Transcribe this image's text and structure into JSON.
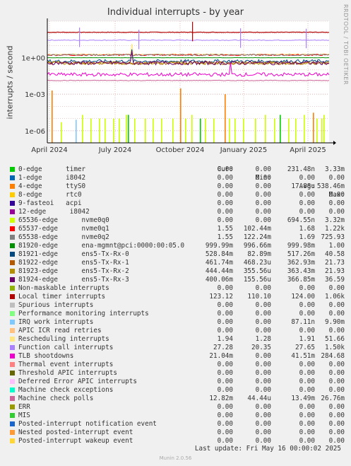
{
  "title": "Individual interrupts - by year",
  "ylabel": "interrupts / second",
  "watermark": "RRDTOOL / TOBI OETIKER",
  "last_update": "Last update: Fri May 16 00:00:02 2025",
  "version": "Munin 2.0.56",
  "chart_data": {
    "type": "line",
    "title": "Individual interrupts - by year",
    "ylabel": "interrupts / second",
    "yscale": "log",
    "ylim": [
      1e-07,
      1000
    ],
    "yticks": [
      {
        "value": 1,
        "label": "1e+00"
      },
      {
        "value": 0.001,
        "label": "1e-03"
      },
      {
        "value": 1e-06,
        "label": "1e-06"
      }
    ],
    "xticks": [
      "April 2024",
      "July 2024",
      "October 2024",
      "January 2025",
      "April 2025"
    ],
    "grid": true,
    "columns": [
      "Cur:",
      "Min:",
      "Avg:",
      "Max:"
    ],
    "series": [
      {
        "name": "0-edge      timer",
        "color": "#00cc00",
        "cur": "0.00",
        "min": "0.00",
        "avg": "231.48n",
        "max": "3.33m"
      },
      {
        "name": "1-edge      i8042",
        "color": "#0066b3",
        "cur": "0.00",
        "min": "0.00",
        "avg": "0.00",
        "max": "0.00"
      },
      {
        "name": "4-edge      ttyS0",
        "color": "#ff8000",
        "cur": "0.00",
        "min": "0.00",
        "avg": "17.88u",
        "max": "538.46m"
      },
      {
        "name": "8-edge      rtc0",
        "color": "#ffcc00",
        "cur": "0.00",
        "min": "0.00",
        "avg": "0.00",
        "max": "0.00"
      },
      {
        "name": "9-fasteoi   acpi",
        "color": "#330099",
        "cur": "0.00",
        "min": "0.00",
        "avg": "0.00",
        "max": "0.00"
      },
      {
        "name": "12-edge      i8042",
        "color": "#990099",
        "cur": "0.00",
        "min": "0.00",
        "avg": "0.00",
        "max": "0.00"
      },
      {
        "name": "65536-edge      nvme0q0",
        "color": "#ccff00",
        "cur": "0.00",
        "min": "0.00",
        "avg": "694.55n",
        "max": "3.32m"
      },
      {
        "name": "65537-edge      nvme0q1",
        "color": "#ff0000",
        "cur": "1.55",
        "min": "102.44m",
        "avg": "1.68",
        "max": "1.22k"
      },
      {
        "name": "65538-edge      nvme0q2",
        "color": "#808080",
        "cur": "1.55",
        "min": "122.24m",
        "avg": "1.69",
        "max": "725.93"
      },
      {
        "name": "81920-edge      ena-mgmnt@pci:0000:00:05.0",
        "color": "#008f00",
        "cur": "999.99m",
        "min": "996.66m",
        "avg": "999.98m",
        "max": "1.00"
      },
      {
        "name": "81921-edge      ens5-Tx-Rx-0",
        "color": "#00487d",
        "cur": "528.84m",
        "min": "82.89m",
        "avg": "517.26m",
        "max": "40.58"
      },
      {
        "name": "81922-edge      ens5-Tx-Rx-1",
        "color": "#b35a00",
        "cur": "461.74m",
        "min": "468.23u",
        "avg": "362.93m",
        "max": "21.73"
      },
      {
        "name": "81923-edge      ens5-Tx-Rx-2",
        "color": "#b38f00",
        "cur": "444.44m",
        "min": "355.56u",
        "avg": "363.43m",
        "max": "21.93"
      },
      {
        "name": "81924-edge      ens5-Tx-Rx-3",
        "color": "#6b006b",
        "cur": "400.06m",
        "min": "155.56u",
        "avg": "366.85m",
        "max": "36.59"
      },
      {
        "name": "Non-maskable interrupts",
        "color": "#8fb300",
        "cur": "0.00",
        "min": "0.00",
        "avg": "0.00",
        "max": "0.00"
      },
      {
        "name": "Local timer interrupts",
        "color": "#b30000",
        "cur": "123.12",
        "min": "110.10",
        "avg": "124.00",
        "max": "1.06k"
      },
      {
        "name": "Spurious interrupts",
        "color": "#bebebe",
        "cur": "0.00",
        "min": "0.00",
        "avg": "0.00",
        "max": "0.00"
      },
      {
        "name": "Performance monitoring interrupts",
        "color": "#80ff80",
        "cur": "0.00",
        "min": "0.00",
        "avg": "0.00",
        "max": "0.00"
      },
      {
        "name": "IRQ work interrupts",
        "color": "#80c9ff",
        "cur": "0.00",
        "min": "0.00",
        "avg": "87.11n",
        "max": "9.90m"
      },
      {
        "name": "APIC ICR read retries",
        "color": "#ffc080",
        "cur": "0.00",
        "min": "0.00",
        "avg": "0.00",
        "max": "0.00"
      },
      {
        "name": "Rescheduling interrupts",
        "color": "#ffe680",
        "cur": "1.94",
        "min": "1.28",
        "avg": "1.91",
        "max": "51.66"
      },
      {
        "name": "Function call interrupts",
        "color": "#aa80ff",
        "cur": "27.28",
        "min": "20.35",
        "avg": "27.65",
        "max": "1.50k"
      },
      {
        "name": "TLB shootdowns",
        "color": "#ee00cc",
        "cur": "21.04m",
        "min": "0.00",
        "avg": "41.51m",
        "max": "284.68"
      },
      {
        "name": "Thermal event interrupts",
        "color": "#ff8080",
        "cur": "0.00",
        "min": "0.00",
        "avg": "0.00",
        "max": "0.00"
      },
      {
        "name": "Threshold APIC interrupts",
        "color": "#666600",
        "cur": "0.00",
        "min": "0.00",
        "avg": "0.00",
        "max": "0.00"
      },
      {
        "name": "Deferred Error APIC interrupts",
        "color": "#ffbfff",
        "cur": "0.00",
        "min": "0.00",
        "avg": "0.00",
        "max": "0.00"
      },
      {
        "name": "Machine check exceptions",
        "color": "#00ffcc",
        "cur": "0.00",
        "min": "0.00",
        "avg": "0.00",
        "max": "0.00"
      },
      {
        "name": "Machine check polls",
        "color": "#cc6699",
        "cur": "12.82m",
        "min": "44.44u",
        "avg": "13.49m",
        "max": "26.76m"
      },
      {
        "name": "ERR",
        "color": "#999900",
        "cur": "0.00",
        "min": "0.00",
        "avg": "0.00",
        "max": "0.00"
      },
      {
        "name": "MIS",
        "color": "#33cc33",
        "cur": "0.00",
        "min": "0.00",
        "avg": "0.00",
        "max": "0.00"
      },
      {
        "name": "Posted-interrupt notification event",
        "color": "#1a66cc",
        "cur": "0.00",
        "min": "0.00",
        "avg": "0.00",
        "max": "0.00"
      },
      {
        "name": "Nested posted-interrupt event",
        "color": "#ff9933",
        "cur": "0.00",
        "min": "0.00",
        "avg": "0.00",
        "max": "0.00"
      },
      {
        "name": "Posted-interrupt wakeup event",
        "color": "#ffd633",
        "cur": "0.00",
        "min": "0.00",
        "avg": "0.00",
        "max": "0.00"
      }
    ]
  }
}
